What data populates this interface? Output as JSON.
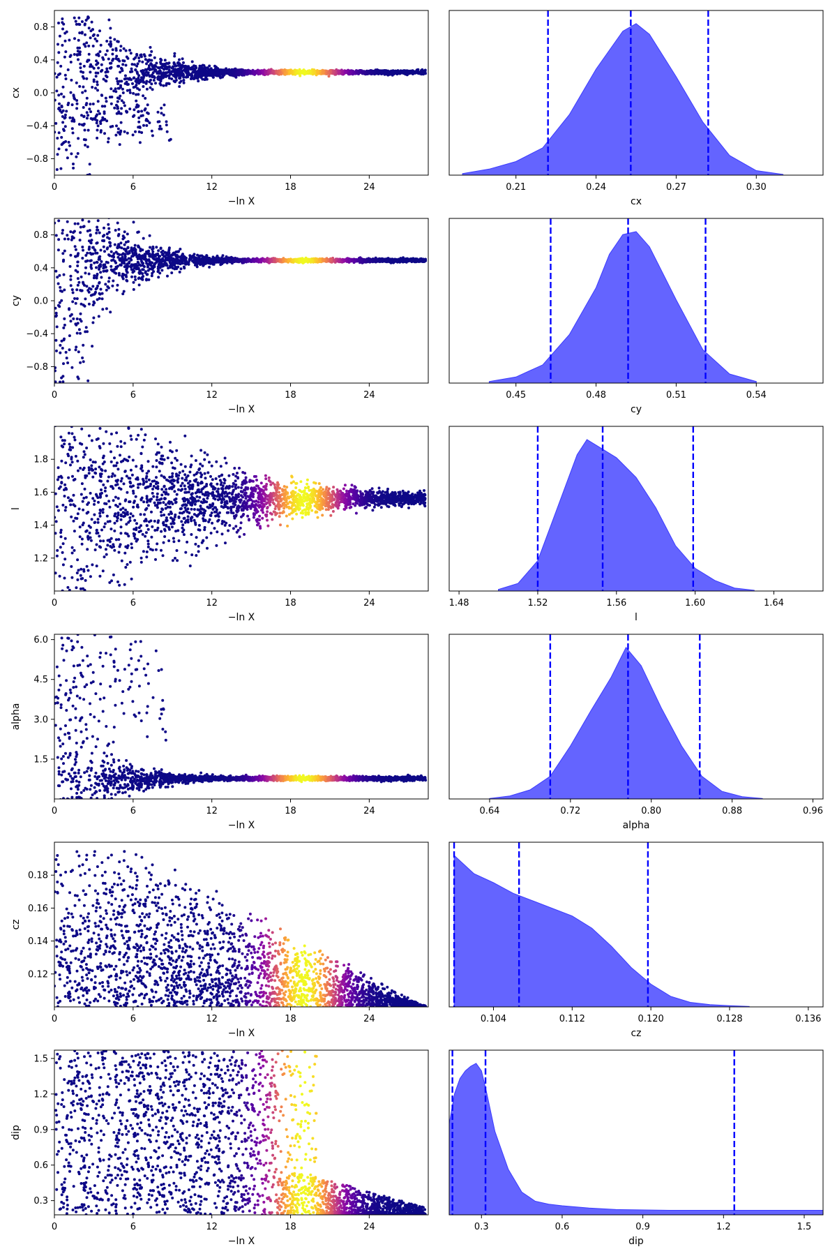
{
  "chart_data": [
    {
      "type": "scatter",
      "panel": "trace",
      "param": "cx",
      "xlabel": "−ln X",
      "ylabel": "cx",
      "xlim": [
        0,
        28.5
      ],
      "ylim": [
        -1.0,
        1.0
      ],
      "xticks": [
        0,
        6,
        12,
        18,
        24
      ],
      "yticks": [
        0.8,
        0.4,
        0.0,
        -0.4,
        -0.8
      ],
      "ytick_labels": [
        "0.8",
        "0.4",
        "0.0",
        "−0.4",
        "−0.8"
      ],
      "colormap": "plasma",
      "peak_x": 19,
      "shape": {
        "center": 0.25,
        "spread_start": 0.95,
        "decay": 0.28,
        "floor": 0.012
      },
      "secondary_lobe": {
        "center": -0.35,
        "width": 0.12,
        "x_end": 9
      }
    },
    {
      "type": "area",
      "panel": "posterior",
      "param": "cx",
      "xlabel": "cx",
      "xlim": [
        0.185,
        0.325
      ],
      "xticks": [
        0.21,
        0.24,
        0.27,
        0.3
      ],
      "xtick_labels": [
        "0.21",
        "0.24",
        "0.27",
        "0.30"
      ],
      "quantiles": [
        0.222,
        0.253,
        0.282
      ],
      "density": {
        "x": [
          0.19,
          0.2,
          0.21,
          0.22,
          0.23,
          0.24,
          0.25,
          0.255,
          0.26,
          0.27,
          0.28,
          0.29,
          0.3,
          0.31
        ],
        "y": [
          0.01,
          0.04,
          0.09,
          0.18,
          0.4,
          0.7,
          0.95,
          1.0,
          0.93,
          0.65,
          0.35,
          0.13,
          0.03,
          0.005
        ]
      }
    },
    {
      "type": "scatter",
      "panel": "trace",
      "param": "cy",
      "xlabel": "−ln X",
      "ylabel": "cy",
      "xlim": [
        0,
        28.5
      ],
      "ylim": [
        -1.0,
        1.0
      ],
      "xticks": [
        0,
        6,
        12,
        18,
        24
      ],
      "yticks": [
        0.8,
        0.4,
        0.0,
        -0.4,
        -0.8
      ],
      "ytick_labels": [
        "0.8",
        "0.4",
        "0.0",
        "−0.4",
        "−0.8"
      ],
      "colormap": "plasma",
      "peak_x": 19,
      "shape": {
        "center": 0.49,
        "spread_start": 0.9,
        "decay": 0.3,
        "floor": 0.01
      },
      "secondary_lobe": {
        "center": -0.6,
        "width": 0.45,
        "x_end": 2
      }
    },
    {
      "type": "area",
      "panel": "posterior",
      "param": "cy",
      "xlabel": "cy",
      "xlim": [
        0.425,
        0.565
      ],
      "xticks": [
        0.45,
        0.48,
        0.51,
        0.54
      ],
      "xtick_labels": [
        "0.45",
        "0.48",
        "0.51",
        "0.54"
      ],
      "quantiles": [
        0.463,
        0.492,
        0.521
      ],
      "density": {
        "x": [
          0.44,
          0.45,
          0.46,
          0.47,
          0.48,
          0.485,
          0.49,
          0.495,
          0.5,
          0.51,
          0.52,
          0.53,
          0.54
        ],
        "y": [
          0.01,
          0.04,
          0.12,
          0.32,
          0.63,
          0.85,
          0.98,
          1.0,
          0.9,
          0.55,
          0.22,
          0.06,
          0.01
        ]
      }
    },
    {
      "type": "scatter",
      "panel": "trace",
      "param": "l",
      "xlabel": "−ln X",
      "ylabel": "l",
      "xlim": [
        0,
        28.5
      ],
      "ylim": [
        1.0,
        2.0
      ],
      "xticks": [
        0,
        6,
        12,
        18,
        24
      ],
      "yticks": [
        1.8,
        1.6,
        1.4,
        1.2
      ],
      "ytick_labels": [
        "1.8",
        "1.6",
        "1.4",
        "1.2"
      ],
      "colormap": "plasma",
      "peak_x": 19,
      "shape": {
        "center": 1.56,
        "spread_start": 0.45,
        "decay": 0.12,
        "floor": 0.02
      }
    },
    {
      "type": "area",
      "panel": "posterior",
      "param": "l",
      "xlabel": "l",
      "xlim": [
        1.475,
        1.665
      ],
      "xticks": [
        1.48,
        1.52,
        1.56,
        1.6,
        1.64
      ],
      "xtick_labels": [
        "1.48",
        "1.52",
        "1.56",
        "1.60",
        "1.64"
      ],
      "quantiles": [
        1.52,
        1.553,
        1.599
      ],
      "density": {
        "x": [
          1.5,
          1.51,
          1.52,
          1.53,
          1.54,
          1.545,
          1.55,
          1.56,
          1.57,
          1.58,
          1.59,
          1.6,
          1.61,
          1.62,
          1.63
        ],
        "y": [
          0.01,
          0.05,
          0.2,
          0.55,
          0.9,
          1.0,
          0.96,
          0.88,
          0.75,
          0.55,
          0.3,
          0.15,
          0.07,
          0.02,
          0.005
        ]
      }
    },
    {
      "type": "scatter",
      "panel": "trace",
      "param": "alpha",
      "xlabel": "−ln X",
      "ylabel": "alpha",
      "xlim": [
        0,
        28.5
      ],
      "ylim": [
        0,
        6.2
      ],
      "xticks": [
        0,
        6,
        12,
        18,
        24
      ],
      "yticks": [
        6.0,
        4.5,
        3.0,
        1.5
      ],
      "ytick_labels": [
        "6.0",
        "4.5",
        "3.0",
        "1.5"
      ],
      "colormap": "plasma",
      "peak_x": 19,
      "shape": {
        "center": 0.77,
        "spread_start": 1.6,
        "decay": 0.3,
        "floor": 0.04
      },
      "secondary_lobe": {
        "center": 4.5,
        "width": 1.4,
        "x_end": 8.5
      }
    },
    {
      "type": "area",
      "panel": "posterior",
      "param": "alpha",
      "xlabel": "alpha",
      "xlim": [
        0.6,
        0.97
      ],
      "xticks": [
        0.64,
        0.72,
        0.8,
        0.88,
        0.96
      ],
      "xtick_labels": [
        "0.64",
        "0.72",
        "0.80",
        "0.88",
        "0.96"
      ],
      "quantiles": [
        0.7,
        0.777,
        0.848
      ],
      "density": {
        "x": [
          0.64,
          0.66,
          0.68,
          0.7,
          0.72,
          0.74,
          0.76,
          0.775,
          0.79,
          0.81,
          0.83,
          0.85,
          0.87,
          0.89,
          0.91
        ],
        "y": [
          0.003,
          0.02,
          0.06,
          0.15,
          0.35,
          0.58,
          0.8,
          1.0,
          0.88,
          0.6,
          0.35,
          0.15,
          0.05,
          0.015,
          0.003
        ]
      }
    },
    {
      "type": "scatter",
      "panel": "trace",
      "param": "cz",
      "xlabel": "−ln X",
      "ylabel": "cz",
      "xlim": [
        0,
        28.5
      ],
      "ylim": [
        0.1,
        0.2
      ],
      "xticks": [
        0,
        6,
        12,
        18,
        24
      ],
      "yticks": [
        0.18,
        0.16,
        0.14,
        0.12
      ],
      "ytick_labels": [
        "0.18",
        "0.16",
        "0.14",
        "0.12"
      ],
      "colormap": "plasma",
      "peak_x": 19,
      "shape": {
        "lower": 0.1,
        "top_start": 0.2,
        "top_decay_from": 6,
        "top_end": 0.101,
        "top_end_x": 28
      }
    },
    {
      "type": "area",
      "panel": "posterior",
      "param": "cz",
      "xlabel": "cz",
      "xlim": [
        0.0995,
        0.1375
      ],
      "xticks": [
        0.104,
        0.112,
        0.12,
        0.128,
        0.136
      ],
      "xtick_labels": [
        "0.104",
        "0.112",
        "0.120",
        "0.128",
        "0.136"
      ],
      "quantiles": [
        0.1,
        0.1066,
        0.1197
      ],
      "density": {
        "x": [
          0.1,
          0.102,
          0.104,
          0.106,
          0.108,
          0.11,
          0.112,
          0.114,
          0.116,
          0.118,
          0.12,
          0.122,
          0.124,
          0.126,
          0.128,
          0.13
        ],
        "y": [
          1.0,
          0.88,
          0.82,
          0.75,
          0.7,
          0.65,
          0.6,
          0.52,
          0.4,
          0.26,
          0.15,
          0.07,
          0.03,
          0.015,
          0.008,
          0.003
        ]
      }
    },
    {
      "type": "scatter",
      "panel": "trace",
      "param": "dip",
      "xlabel": "−ln X",
      "ylabel": "dip",
      "xlim": [
        0,
        28.5
      ],
      "ylim": [
        0.18,
        1.57
      ],
      "xticks": [
        0,
        6,
        12,
        18,
        24
      ],
      "yticks": [
        1.5,
        1.2,
        0.9,
        0.6,
        0.3
      ],
      "ytick_labels": [
        "1.5",
        "1.2",
        "0.9",
        "0.6",
        "0.3"
      ],
      "colormap": "plasma",
      "peak_x": 19,
      "shape": {
        "lower": 0.18,
        "full_until": 17,
        "top_end_x": 20,
        "tail_top": 0.5,
        "tail_top_end": 0.25,
        "tail_end_x": 28
      }
    },
    {
      "type": "area",
      "panel": "posterior",
      "param": "dip",
      "xlabel": "dip",
      "xlim": [
        0.18,
        1.57
      ],
      "xticks": [
        0.3,
        0.6,
        0.9,
        1.2,
        1.5
      ],
      "xtick_labels": [
        "0.3",
        "0.6",
        "0.9",
        "1.2",
        "1.5"
      ],
      "quantiles": [
        0.192,
        0.315,
        1.24
      ],
      "density": {
        "x": [
          0.18,
          0.2,
          0.22,
          0.24,
          0.26,
          0.28,
          0.3,
          0.32,
          0.35,
          0.4,
          0.45,
          0.5,
          0.55,
          0.6,
          0.7,
          0.8,
          1.0,
          1.2,
          1.4,
          1.57
        ],
        "y": [
          0.6,
          0.8,
          0.9,
          0.95,
          0.98,
          1.0,
          0.95,
          0.8,
          0.55,
          0.3,
          0.15,
          0.09,
          0.07,
          0.06,
          0.045,
          0.035,
          0.03,
          0.03,
          0.03,
          0.03
        ]
      }
    }
  ],
  "colors": {
    "fill": "#6464ff",
    "fill_edge": "#3a3aff",
    "quantile_line": "#0000ff",
    "axes": "#000000",
    "background": "#ffffff"
  }
}
